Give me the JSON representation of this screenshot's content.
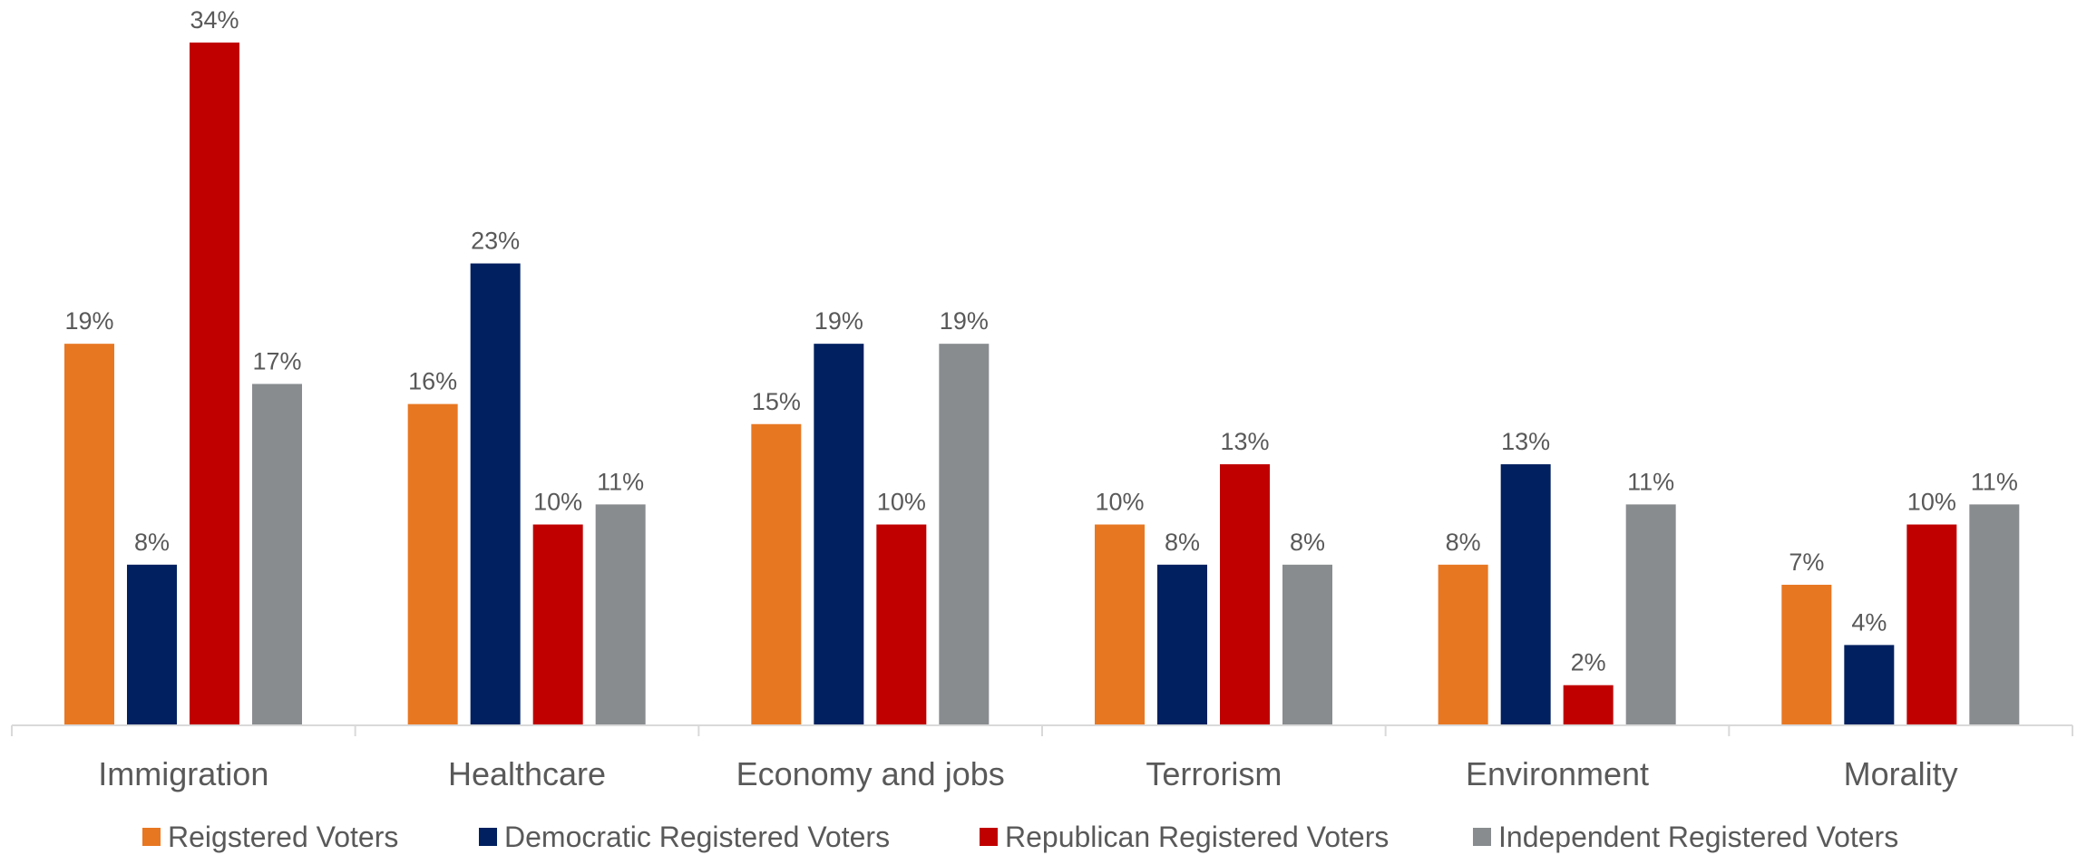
{
  "chart_data": {
    "type": "bar",
    "title": "",
    "xlabel": "",
    "ylabel": "",
    "ylim": [
      0,
      36
    ],
    "grid": false,
    "legend_position": "bottom",
    "value_suffix": "%",
    "categories": [
      "Immigration",
      "Healthcare",
      "Economy and jobs",
      "Terrorism",
      "Environment",
      "Morality"
    ],
    "series": [
      {
        "name": "Reigstered Voters",
        "color": "#E87722",
        "values": [
          19,
          16,
          15,
          10,
          8,
          7
        ]
      },
      {
        "name": "Democratic Registered Voters",
        "color": "#002060",
        "values": [
          8,
          23,
          19,
          8,
          13,
          4
        ]
      },
      {
        "name": "Republican Registered Voters",
        "color": "#C00000",
        "values": [
          34,
          10,
          10,
          13,
          2,
          10
        ]
      },
      {
        "name": "Independent Registered Voters",
        "color": "#898C8F",
        "values": [
          17,
          11,
          19,
          8,
          11,
          11
        ]
      }
    ]
  }
}
